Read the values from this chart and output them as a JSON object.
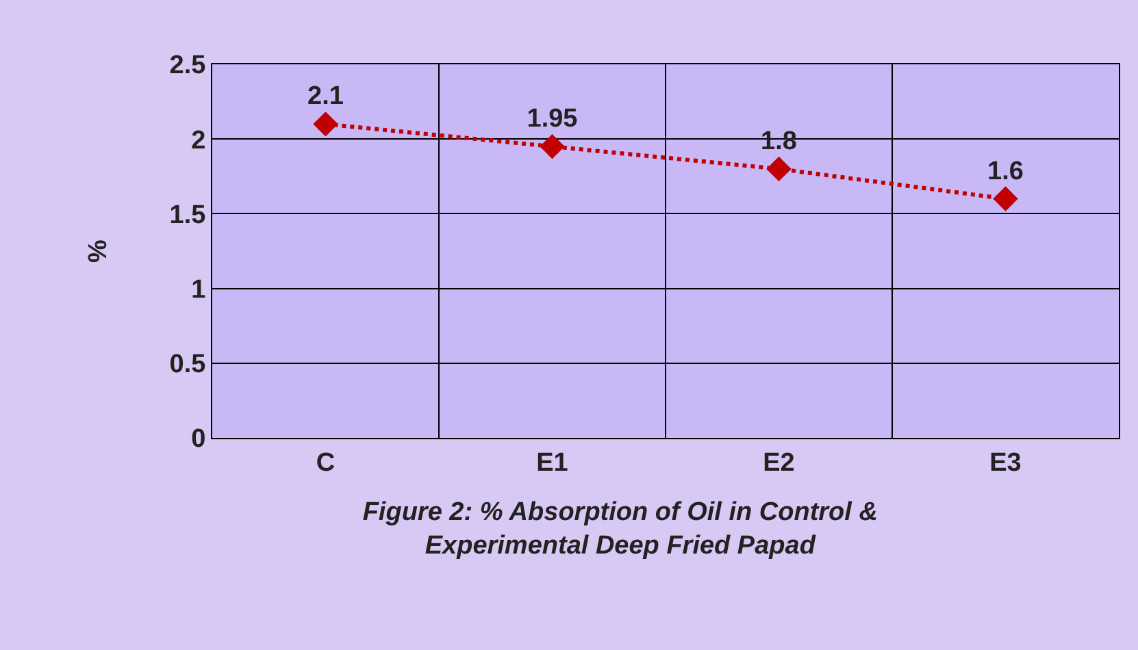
{
  "chart_data": {
    "type": "line",
    "title": "Figure 2: % Absorption of Oil in Control &\nExperimental Deep Fried Papad",
    "ylabel": "%",
    "categories": [
      "C",
      "E1",
      "E2",
      "E3"
    ],
    "series": [
      {
        "color": "#c00000",
        "values": [
          2.1,
          1.95,
          1.8,
          1.6
        ]
      }
    ],
    "ylim": [
      0,
      2.5
    ],
    "yticks": [
      0,
      0.5,
      1,
      1.5,
      2,
      2.5
    ],
    "grid": true,
    "marker": "diamond",
    "line_style": "dotted",
    "data_labels": true,
    "legend": false
  }
}
